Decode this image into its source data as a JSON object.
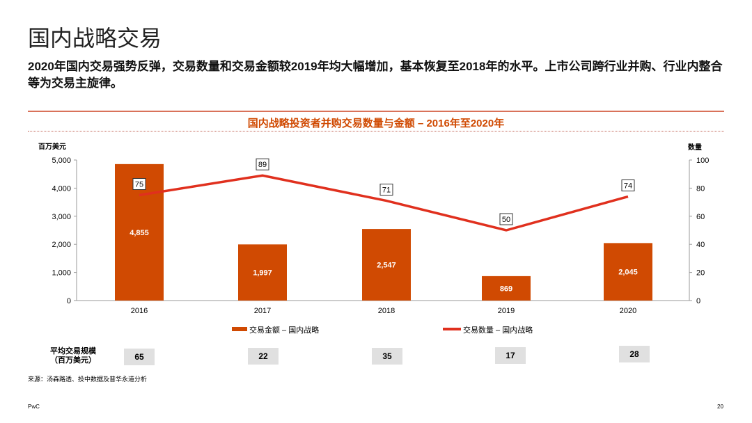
{
  "title": "国内战略交易",
  "description": "2020年国内交易强势反弹，交易数量和交易金额较2019年均大幅增加，基本恢复至2018年的水平。上市公司跨行业并购、行业内整合等为交易主旋律。",
  "chart_data": {
    "type": "bar",
    "title": "国内战略投资者并购交易数量与金额 – 2016年至2020年",
    "categories": [
      "2016",
      "2017",
      "2018",
      "2019",
      "2020"
    ],
    "ylabel": "百万美元",
    "y2label": "数量",
    "ylim": [
      0,
      5000
    ],
    "y2lim": [
      0,
      100
    ],
    "yticks": [
      "0",
      "1,000",
      "2,000",
      "3,000",
      "4,000",
      "5,000"
    ],
    "y2ticks": [
      "0",
      "20",
      "40",
      "60",
      "80",
      "100"
    ],
    "series": [
      {
        "name": "交易金额 – 国内战略",
        "type": "bar",
        "color": "#d04a02",
        "values": [
          4855,
          1997,
          2547,
          869,
          2045
        ],
        "labels": [
          "4,855",
          "1,997",
          "2,547",
          "869",
          "2,045"
        ]
      },
      {
        "name": "交易数量 – 国内战略",
        "type": "line",
        "color": "#e0301e",
        "values": [
          75,
          89,
          71,
          50,
          74
        ],
        "labels": [
          "75",
          "89",
          "71",
          "50",
          "74"
        ]
      }
    ],
    "legend": "bottom"
  },
  "avg": {
    "label_line1": "平均交易规模",
    "label_line2": "（百万美元）",
    "values": [
      "65",
      "22",
      "35",
      "17",
      "28"
    ]
  },
  "source": "来源：汤森路透、投中数据及普华永道分析",
  "footer": {
    "brand": "PwC",
    "page": "20"
  }
}
